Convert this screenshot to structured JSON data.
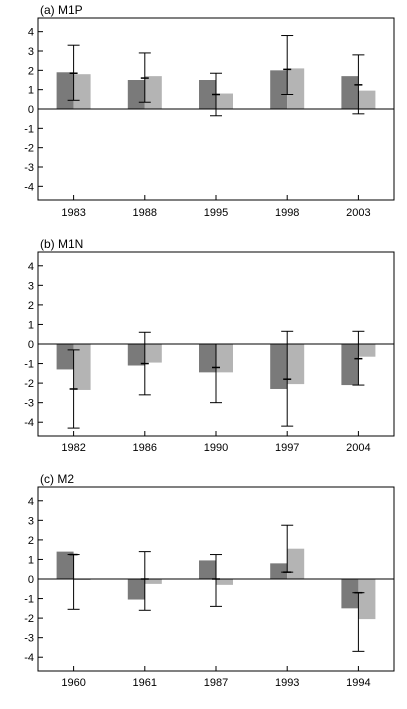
{
  "colors": {
    "series_1": "#7a7a7a",
    "series_2": "#b4b4b4",
    "axis": "#000000",
    "error_bar": "#000000"
  },
  "chart_data": [
    {
      "type": "bar",
      "title": "(a) M1P",
      "categories": [
        "1983",
        "1988",
        "1995",
        "1998",
        "2003"
      ],
      "series": [
        {
          "values": [
            1.9,
            1.5,
            1.5,
            2.0,
            1.7
          ]
        },
        {
          "values": [
            1.8,
            1.7,
            0.8,
            2.1,
            0.95
          ]
        }
      ],
      "error_bars": [
        {
          "center": 1.85,
          "low": 0.45,
          "high": 3.3
        },
        {
          "center": 1.6,
          "low": 0.35,
          "high": 2.9
        },
        {
          "center": 0.75,
          "low": -0.35,
          "high": 1.85
        },
        {
          "center": 2.05,
          "low": 0.75,
          "high": 3.8
        },
        {
          "center": 1.25,
          "low": -0.25,
          "high": 2.8
        }
      ],
      "ylim": [
        -4.5,
        4.5
      ],
      "yticks": [
        -4,
        -3,
        -2,
        -1,
        0,
        1,
        2,
        3,
        4
      ],
      "grid": false,
      "legend": "none"
    },
    {
      "type": "bar",
      "title": "(b) M1N",
      "categories": [
        "1982",
        "1986",
        "1990",
        "1997",
        "2004"
      ],
      "series": [
        {
          "values": [
            -1.3,
            -1.1,
            -1.45,
            -2.3,
            -2.1
          ]
        },
        {
          "values": [
            -2.35,
            -0.95,
            -1.45,
            -2.05,
            -0.65
          ]
        }
      ],
      "error_bars": [
        {
          "center": -2.3,
          "low": -4.3,
          "high": -0.3
        },
        {
          "center": -1.0,
          "low": -2.6,
          "high": 0.6
        },
        {
          "center": -1.2,
          "low": -3.0,
          "high": 0.0
        },
        {
          "center": -1.8,
          "low": -4.2,
          "high": 0.65
        },
        {
          "center": -0.75,
          "low": -2.1,
          "high": 0.65
        }
      ],
      "ylim": [
        -4.5,
        4.5
      ],
      "yticks": [
        -4,
        -3,
        -2,
        -1,
        0,
        1,
        2,
        3,
        4
      ],
      "grid": false,
      "legend": "none"
    },
    {
      "type": "bar",
      "title": "(c) M2",
      "categories": [
        "1960",
        "1961",
        "1987",
        "1993",
        "1994"
      ],
      "series": [
        {
          "values": [
            1.4,
            -1.05,
            0.95,
            0.8,
            -1.5
          ]
        },
        {
          "values": [
            -0.05,
            -0.25,
            -0.3,
            1.55,
            -2.05
          ]
        }
      ],
      "error_bars": [
        {
          "center": 1.25,
          "low": -1.55,
          "high": 1.25
        },
        {
          "center": 0.0,
          "low": -1.6,
          "high": 1.4
        },
        {
          "center": 0.0,
          "low": -1.4,
          "high": 1.25
        },
        {
          "center": 0.35,
          "low": 0.35,
          "high": 2.75
        },
        {
          "center": -0.7,
          "low": -3.7,
          "high": -0.7
        }
      ],
      "ylim": [
        -4.5,
        4.5
      ],
      "yticks": [
        -4,
        -3,
        -2,
        -1,
        0,
        1,
        2,
        3,
        4
      ],
      "grid": false,
      "legend": "none"
    }
  ]
}
